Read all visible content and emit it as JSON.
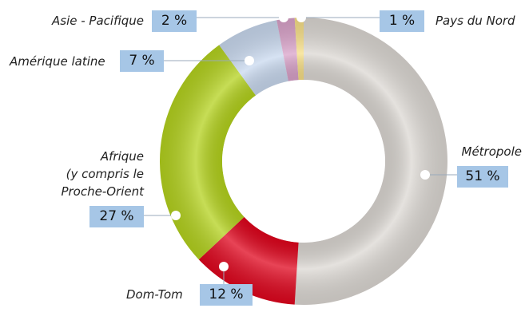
{
  "chart_data": {
    "type": "donut",
    "categories": [
      "Métropole",
      "Dom-Tom",
      "Afrique\n(y compris le\nProche-Orient",
      "Amérique latine",
      "Asie - Pacifique",
      "Pays du Nord"
    ],
    "values": [
      51,
      12,
      27,
      7,
      2,
      1
    ],
    "value_labels": [
      "51 %",
      "12 %",
      "27 %",
      "7 %",
      "2 %",
      "1 %"
    ],
    "colors": [
      "#dcd8d3",
      "#e0061e",
      "#b4d21e",
      "#c9d9ef",
      "#d9a2c9",
      "#f7df86"
    ]
  }
}
